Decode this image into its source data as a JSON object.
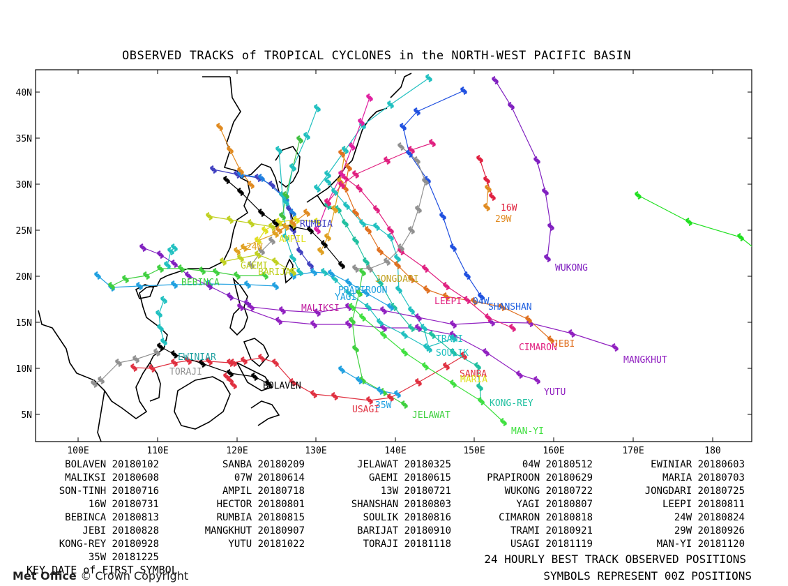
{
  "title": "OBSERVED TRACKS of TROPICAL CYCLONES in the NORTH-WEST PACIFIC BASIN",
  "axes": {
    "lon_ticks": [
      "100E",
      "110E",
      "120E",
      "130E",
      "140E",
      "150E",
      "160E",
      "170E",
      "180"
    ],
    "lat_ticks": [
      "40N",
      "35N",
      "30N",
      "25N",
      "20N",
      "15N",
      "10N",
      "5N"
    ]
  },
  "storm_labels": [
    {
      "name": "16W",
      "color": "#e0203c"
    },
    {
      "name": "29W",
      "color": "#e08a20"
    },
    {
      "name": "RUMBIA",
      "color": "#4040c0"
    },
    {
      "name": "AMPIL",
      "color": "#e0e020"
    },
    {
      "name": "24W",
      "color": "#e0a020"
    },
    {
      "name": "GAEMI",
      "color": "#c0d020"
    },
    {
      "name": "BARIJAT",
      "color": "#c0d020"
    },
    {
      "name": "BEBINCA",
      "color": "#40d040"
    },
    {
      "name": "WUKONG",
      "color": "#8020c0"
    },
    {
      "name": "JONGDARI",
      "color": "#c0a020"
    },
    {
      "name": "PRAPIROON",
      "color": "#20a0e0"
    },
    {
      "name": "YAGI",
      "color": "#20a0e0"
    },
    {
      "name": "MALIKSI",
      "color": "#c020a0"
    },
    {
      "name": "LEEPI",
      "color": "#e02080"
    },
    {
      "name": "04W",
      "color": "#2060e0"
    },
    {
      "name": "SHANSHAN",
      "color": "#2060e0"
    },
    {
      "name": "TRAMI",
      "color": "#20c0c0"
    },
    {
      "name": "SOULIK",
      "color": "#20c0c0"
    },
    {
      "name": "CIMARON",
      "color": "#e02080"
    },
    {
      "name": "JEBI",
      "color": "#e07020"
    },
    {
      "name": "MANGKHUT",
      "color": "#9020c0"
    },
    {
      "name": "EWINIAR",
      "color": "#20a0a0"
    },
    {
      "name": "TORAJI",
      "color": "#909090"
    },
    {
      "name": "SANBA",
      "color": "#e03040"
    },
    {
      "name": "MARIA",
      "color": "#e0e020"
    },
    {
      "name": "BOLAVEN",
      "color": "#000000"
    },
    {
      "name": "YUTU",
      "color": "#9020c0"
    },
    {
      "name": "USAGI",
      "color": "#e03040"
    },
    {
      "name": "35W",
      "color": "#20a0e0"
    },
    {
      "name": "KONG-REY",
      "color": "#20c0a0"
    },
    {
      "name": "JELAWAT",
      "color": "#40d040"
    },
    {
      "name": "MAN-YI",
      "color": "#40e040"
    }
  ],
  "legend_rows": [
    [
      "BOLAVEN 20180102",
      "SANBA 20180209",
      "JELAWAT 20180325",
      "04W 20180512",
      "EWINIAR 20180603"
    ],
    [
      "MALIKSI 20180608",
      "07W 20180614",
      "GAEMI 20180615",
      "PRAPIROON 20180629",
      "MARIA 20180703"
    ],
    [
      "SON-TINH 20180716",
      "AMPIL 20180718",
      "13W 20180721",
      "WUKONG 20180722",
      "JONGDARI 20180725"
    ],
    [
      "16W 20180731",
      "HECTOR 20180801",
      "SHANSHAN 20180803",
      "YAGI 20180807",
      "LEEPI 20180811"
    ],
    [
      "BEBINCA 20180813",
      "RUMBIA 20180815",
      "SOULIK 20180816",
      "CIMARON 20180818",
      "24W 20180824"
    ],
    [
      "JEBI 20180828",
      "MANGKHUT 20180907",
      "BARIJAT 20180910",
      "TRAMI 20180921",
      "29W 20180926"
    ],
    [
      "KONG-REY 20180928",
      "YUTU 20181022",
      "TORAJI 20181118",
      "USAGI 20181119",
      "MAN-YI 20181120"
    ],
    [
      "35W 20181225"
    ]
  ],
  "footer": {
    "key_line": "KEY DATE of FIRST SYMBOL",
    "brand": "Met Office",
    "copyright": "© Crown Copyright",
    "line1": "24 HOURLY BEST TRACK OBSERVED POSITIONS",
    "line2": "SYMBOLS REPRESENT 00Z POSITIONS"
  }
}
